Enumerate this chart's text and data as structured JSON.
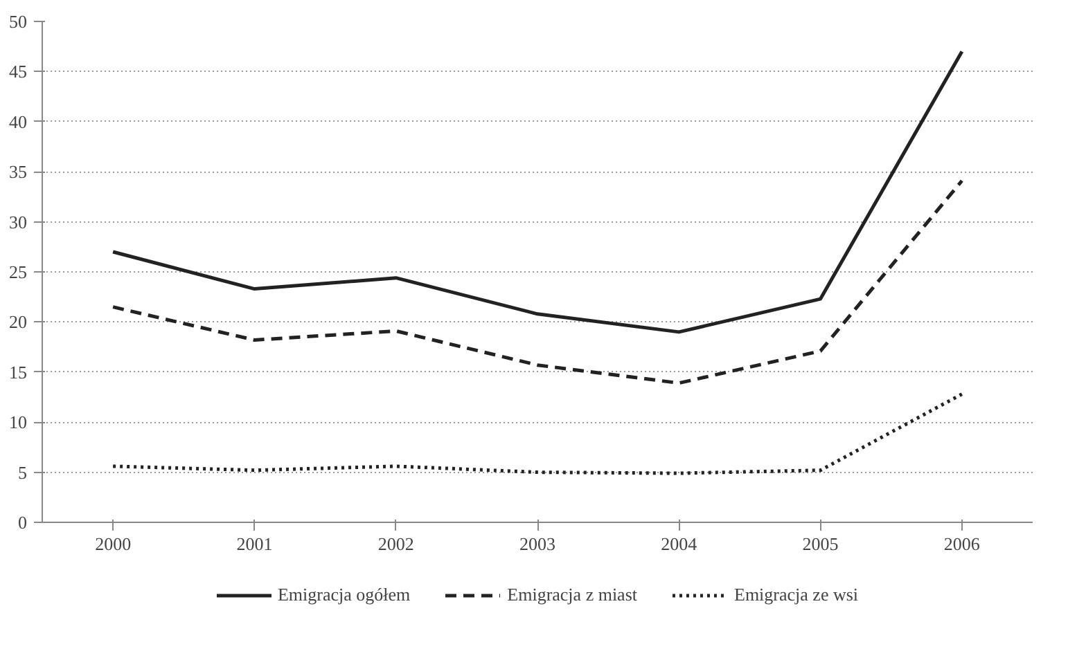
{
  "chart_data": {
    "type": "line",
    "categories": [
      "2000",
      "2001",
      "2002",
      "2003",
      "2004",
      "2005",
      "2006"
    ],
    "series": [
      {
        "name": "Emigracja ogółem",
        "color": "#222222",
        "line_style": "solid",
        "values": [
          27.0,
          23.3,
          24.4,
          20.8,
          19.0,
          22.3,
          47.0
        ]
      },
      {
        "name": "Emigracja z miast",
        "color": "#222222",
        "line_style": "dashed",
        "values": [
          21.5,
          18.2,
          19.1,
          15.7,
          13.9,
          17.1,
          34.1
        ]
      },
      {
        "name": "Emigracja ze wsi",
        "color": "#222222",
        "line_style": "dotted",
        "values": [
          5.6,
          5.2,
          5.6,
          5.0,
          4.9,
          5.2,
          12.8
        ]
      }
    ],
    "ylim": [
      0,
      50
    ],
    "yticks": [
      0,
      5,
      10,
      15,
      20,
      25,
      30,
      35,
      40,
      45,
      50
    ],
    "grid": "y",
    "legend": "bottom"
  }
}
